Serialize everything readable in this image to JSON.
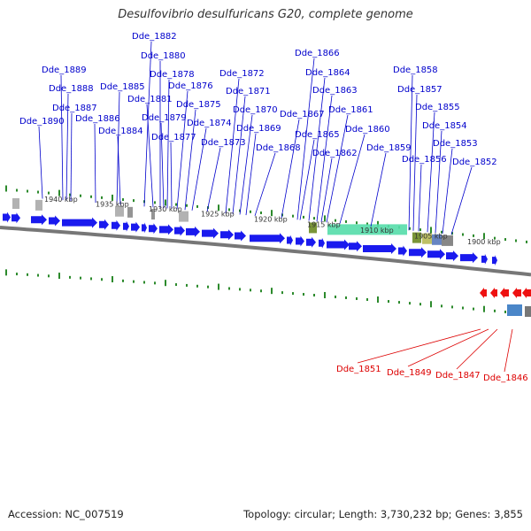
{
  "title": "Desulfovibrio desulfuricans G20, complete genome",
  "footer": {
    "accession": "Accession: NC_007519",
    "topology": "Topology: circular; Length: 3,730,232 bp; Genes: 3,855"
  },
  "colors": {
    "plus_strand_gene": "#1a1aee",
    "minus_strand_gene": "#ee1111",
    "plus_label": "#0000cc",
    "minus_label": "#dd0000",
    "tick": "#2c8a2c",
    "backbone": "#777777",
    "feature_green": "#55ddaa",
    "feature_olive": "#6b8a22",
    "feature_gray": "#aaaaaa",
    "feature_blue": "#4a86c8"
  },
  "kbp_labels": [
    "1940 kbp",
    "1935 kbp",
    "1930 kbp",
    "1925 kbp",
    "1920 kbp",
    "1915 kbp",
    "1910 kbp",
    "1905 kbp",
    "1900 kbp"
  ],
  "plus_genes": [
    "Dde_1890",
    "Dde_1889",
    "Dde_1888",
    "Dde_1887",
    "Dde_1886",
    "Dde_1885",
    "Dde_1884",
    "Dde_1882",
    "Dde_1881",
    "Dde_1880",
    "Dde_1879",
    "Dde_1878",
    "Dde_1877",
    "Dde_1876",
    "Dde_1875",
    "Dde_1874",
    "Dde_1873",
    "Dde_1872",
    "Dde_1871",
    "Dde_1870",
    "Dde_1869",
    "Dde_1868",
    "Dde_1867",
    "Dde_1866",
    "Dde_1865",
    "Dde_1864",
    "Dde_1863",
    "Dde_1862",
    "Dde_1861",
    "Dde_1860",
    "Dde_1859",
    "Dde_1858",
    "Dde_1857",
    "Dde_1856",
    "Dde_1855",
    "Dde_1854",
    "Dde_1853",
    "Dde_1852"
  ],
  "minus_genes": [
    "Dde_1851",
    "Dde_1849",
    "Dde_1847",
    "Dde_1846"
  ]
}
